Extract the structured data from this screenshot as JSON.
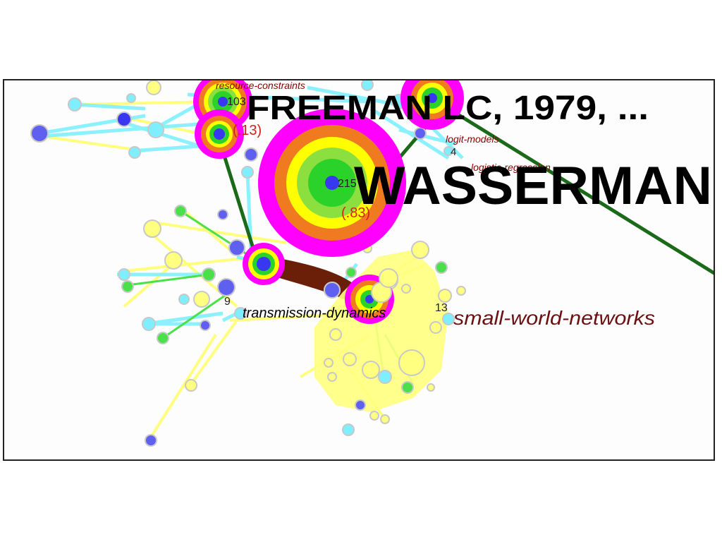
{
  "labels": {
    "freeman": "FREEMAN LC, 1979, ...",
    "wasserman": "WASSERMAN",
    "resource_constraints": "resource-constraints",
    "logit_models": "logit-models",
    "logistic_regression": "logistic-regression",
    "transmission_dynamics": "transmission-dynamics",
    "small_world_networks": "small-world-networks"
  },
  "node_counts": {
    "n103": "103",
    "n215": "215",
    "n4": "4",
    "n9": "9",
    "n13": "13"
  },
  "centrality": {
    "c13": "(.13)",
    "c83": "(.83)"
  },
  "colors": {
    "magenta": "#ff00ff",
    "orange": "#f07a20",
    "yellow": "#ffff80",
    "green": "#2ad22a",
    "blue": "#3838f0",
    "cyan": "#7fefff",
    "dark_green_edge": "#1a6a1a",
    "brown_edge": "#6b1e08",
    "label_red": "#8b0000"
  }
}
